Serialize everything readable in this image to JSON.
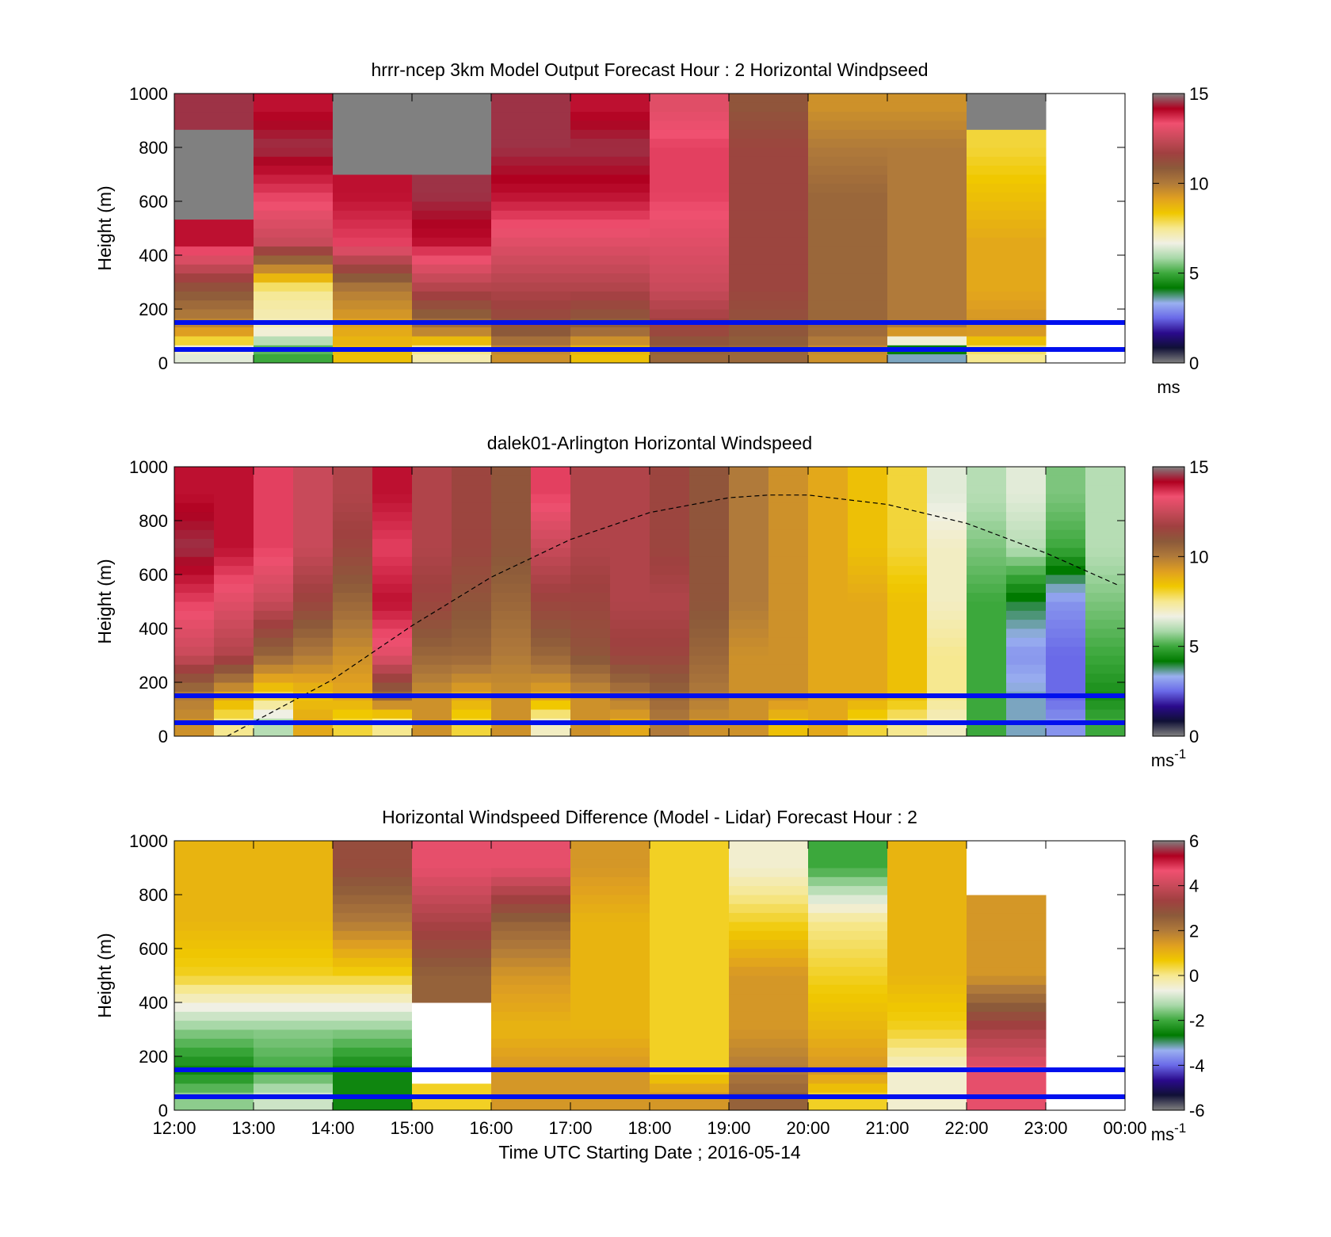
{
  "colors": {
    "background": "#ffffff",
    "blue_lines": "#0010ee",
    "colormap": [
      "#808080",
      "#101036",
      "#2a0a8c",
      "#6a6ae8",
      "#9ab0f0",
      "#007a00",
      "#3ca83c",
      "#a8d8a8",
      "#f0f0e4",
      "#f6e890",
      "#f0c800",
      "#e0a020",
      "#b07a3a",
      "#8c5a3a",
      "#a04040",
      "#c84a5a",
      "#f05070",
      "#b00020",
      "#808080"
    ]
  },
  "figure": {
    "xlabel": "Time UTC  Starting Date ; 2016-05-14",
    "x_ticks": [
      "12:00",
      "13:00",
      "14:00",
      "15:00",
      "16:00",
      "17:00",
      "18:00",
      "19:00",
      "20:00",
      "21:00",
      "22:00",
      "23:00",
      "00:00"
    ]
  },
  "panels": [
    {
      "title": "hrrr-ncep 3km Model Output   Forecast Hour : 2 Horizontal Windpseed",
      "ylabel": "Height (m)",
      "y_ticks": [
        "0",
        "200",
        "400",
        "600",
        "800",
        "1000"
      ],
      "cbar_ticks": [
        "0",
        "5",
        "10",
        "15"
      ],
      "cbar_unit": "ms",
      "cbar_unit_sup": ""
    },
    {
      "title": "dalek01-Arlington  Horizontal Windspeed",
      "ylabel": "Height (m)",
      "y_ticks": [
        "0",
        "200",
        "400",
        "600",
        "800",
        "1000"
      ],
      "cbar_ticks": [
        "0",
        "5",
        "10",
        "15"
      ],
      "cbar_unit": "ms",
      "cbar_unit_sup": "-1"
    },
    {
      "title": "Horizontal Windspeed Difference (Model - Lidar) Forecast Hour : 2",
      "ylabel": "Height (m)",
      "y_ticks": [
        "0",
        "200",
        "400",
        "600",
        "800",
        "1000"
      ],
      "cbar_ticks": [
        "-6",
        "-4",
        "-2",
        "0",
        "2",
        "4",
        "6"
      ],
      "cbar_unit": "ms",
      "cbar_unit_sup": "-1"
    }
  ],
  "chart_data": [
    {
      "type": "heatmap",
      "title": "hrrr-ncep 3km Model Output   Forecast Hour : 2 Horizontal Windpseed",
      "xlabel": "",
      "ylabel": "Height (m)",
      "xlim": [
        "12:00",
        "00:00"
      ],
      "ylim": [
        0,
        1000
      ],
      "clim": [
        0,
        15
      ],
      "colorbar_unit": "ms",
      "x": [
        "12:00",
        "13:00",
        "14:00",
        "15:00",
        "16:00",
        "17:00",
        "18:00",
        "19:00",
        "20:00",
        "21:00",
        "22:00"
      ],
      "y": [
        40,
        125,
        275,
        450,
        625,
        800,
        950
      ],
      "z": [
        [
          6.5,
          5.0,
          8.5,
          7.2,
          9.5,
          8.5,
          10.5,
          10.5,
          9.5,
          3.5,
          7.5
        ],
        [
          9.5,
          7.0,
          9.0,
          10.0,
          11.0,
          10.5,
          11.5,
          11.0,
          10.5,
          10.0,
          9.5
        ],
        [
          11.0,
          7.5,
          10.0,
          12.0,
          12.0,
          12.0,
          12.5,
          11.5,
          10.5,
          10.0,
          9.0
        ],
        [
          14.0,
          12.5,
          13.5,
          14.0,
          13.0,
          13.0,
          13.0,
          11.5,
          10.5,
          10.0,
          9.0
        ],
        [
          null,
          13.5,
          14.0,
          14.5,
          14.0,
          14.0,
          13.5,
          11.5,
          10.5,
          10.0,
          8.5
        ],
        [
          null,
          14.5,
          null,
          null,
          14.5,
          14.5,
          13.5,
          11.5,
          10.0,
          10.0,
          8.0
        ],
        [
          14.5,
          14.0,
          null,
          null,
          14.5,
          14.0,
          13.0,
          11.0,
          9.5,
          9.5,
          null
        ]
      ],
      "overlay_lines_m": [
        50,
        150
      ]
    },
    {
      "type": "heatmap",
      "title": "dalek01-Arlington  Horizontal Windspeed",
      "xlabel": "",
      "ylabel": "Height (m)",
      "xlim": [
        "12:00",
        "00:00"
      ],
      "ylim": [
        0,
        1000
      ],
      "clim": [
        0,
        15
      ],
      "colorbar_unit": "ms-1",
      "x": [
        "12:00",
        "12:30",
        "13:00",
        "13:30",
        "14:00",
        "14:30",
        "15:00",
        "15:30",
        "16:00",
        "16:30",
        "17:00",
        "17:30",
        "18:00",
        "18:30",
        "19:00",
        "19:30",
        "20:00",
        "20:30",
        "21:00",
        "21:30",
        "22:00",
        "22:30",
        "23:00",
        "23:30"
      ],
      "y": [
        50,
        150,
        300,
        500,
        700,
        900
      ],
      "z": [
        [
          9.5,
          7.5,
          6.0,
          9.0,
          8.0,
          7.5,
          9.5,
          8.0,
          9.5,
          7.0,
          9.5,
          9.0,
          10.0,
          9.5,
          9.5,
          8.5,
          9.0,
          8.0,
          7.5,
          7.0,
          5.0,
          3.5,
          3.0,
          5.0
        ],
        [
          10.0,
          9.0,
          8.0,
          8.5,
          9.0,
          10.5,
          9.5,
          9.0,
          9.5,
          9.0,
          9.5,
          10.0,
          10.5,
          10.0,
          9.5,
          9.5,
          9.0,
          9.0,
          8.5,
          7.5,
          5.0,
          3.5,
          2.5,
          4.5
        ],
        [
          12.5,
          12.0,
          10.5,
          10.0,
          9.5,
          13.0,
          10.5,
          10.5,
          10.0,
          10.5,
          11.0,
          11.5,
          11.5,
          10.5,
          9.5,
          9.5,
          9.0,
          9.0,
          8.5,
          7.5,
          5.0,
          3.0,
          2.5,
          5.0
        ],
        [
          13.5,
          13.0,
          12.5,
          11.5,
          10.5,
          14.0,
          11.5,
          11.0,
          10.5,
          11.5,
          11.5,
          12.0,
          12.0,
          11.0,
          10.0,
          9.5,
          9.0,
          9.0,
          8.5,
          7.0,
          5.0,
          4.0,
          3.0,
          5.5
        ],
        [
          14.5,
          14.0,
          13.5,
          12.5,
          11.5,
          13.5,
          12.0,
          11.5,
          11.0,
          12.5,
          12.0,
          12.0,
          11.5,
          11.0,
          10.0,
          9.5,
          9.0,
          8.5,
          8.0,
          7.0,
          5.5,
          6.0,
          5.0,
          6.0
        ],
        [
          14.0,
          14.0,
          13.5,
          12.5,
          12.0,
          14.0,
          12.0,
          11.5,
          11.0,
          13.5,
          12.0,
          12.0,
          11.5,
          11.0,
          10.0,
          9.5,
          9.0,
          8.5,
          8.0,
          6.5,
          6.0,
          6.5,
          5.5,
          6.0
        ]
      ],
      "overlay_lines_m": [
        50,
        150
      ],
      "dashed_curve": {
        "x": [
          "12:40",
          "14:00",
          "15:00",
          "16:00",
          "17:00",
          "18:00",
          "19:00",
          "19:30",
          "20:00",
          "21:00",
          "22:00",
          "23:00",
          "23:55"
        ],
        "y": [
          0,
          210,
          410,
          590,
          730,
          830,
          885,
          895,
          895,
          860,
          790,
          680,
          560
        ]
      }
    },
    {
      "type": "heatmap",
      "title": "Horizontal Windspeed Difference (Model - Lidar) Forecast Hour : 2",
      "xlabel": "Time UTC  Starting Date ; 2016-05-14",
      "ylabel": "Height (m)",
      "xlim": [
        "12:00",
        "00:00"
      ],
      "ylim": [
        0,
        1000
      ],
      "clim": [
        -6,
        6
      ],
      "colorbar_unit": "ms-1",
      "x": [
        "12:00",
        "13:00",
        "14:00",
        "15:00",
        "16:00",
        "17:00",
        "18:00",
        "19:00",
        "20:00",
        "21:00",
        "22:00"
      ],
      "y": [
        50,
        150,
        300,
        500,
        700,
        900
      ],
      "z": [
        [
          -1.5,
          -1.0,
          -2.5,
          0.5,
          1.5,
          1.5,
          1.5,
          2.5,
          0.5,
          -0.5,
          4.5
        ],
        [
          -2.5,
          -2.0,
          -2.5,
          null,
          1.5,
          1.5,
          0.5,
          2.0,
          1.5,
          -0.5,
          4.5
        ],
        [
          -1.5,
          -1.5,
          -1.5,
          null,
          1.0,
          1.0,
          0.5,
          1.5,
          1.0,
          0.5,
          3.5
        ],
        [
          0.5,
          0.5,
          0.5,
          2.5,
          1.5,
          1.0,
          0.5,
          1.5,
          0.5,
          1.0,
          1.5
        ],
        [
          1.0,
          1.0,
          2.0,
          3.5,
          2.5,
          1.0,
          0.5,
          0.5,
          0.0,
          1.0,
          1.5
        ],
        [
          1.0,
          1.0,
          3.0,
          4.5,
          4.5,
          1.5,
          0.5,
          -0.5,
          -2.0,
          1.0,
          null
        ]
      ],
      "overlay_lines_m": [
        50,
        150
      ]
    }
  ]
}
